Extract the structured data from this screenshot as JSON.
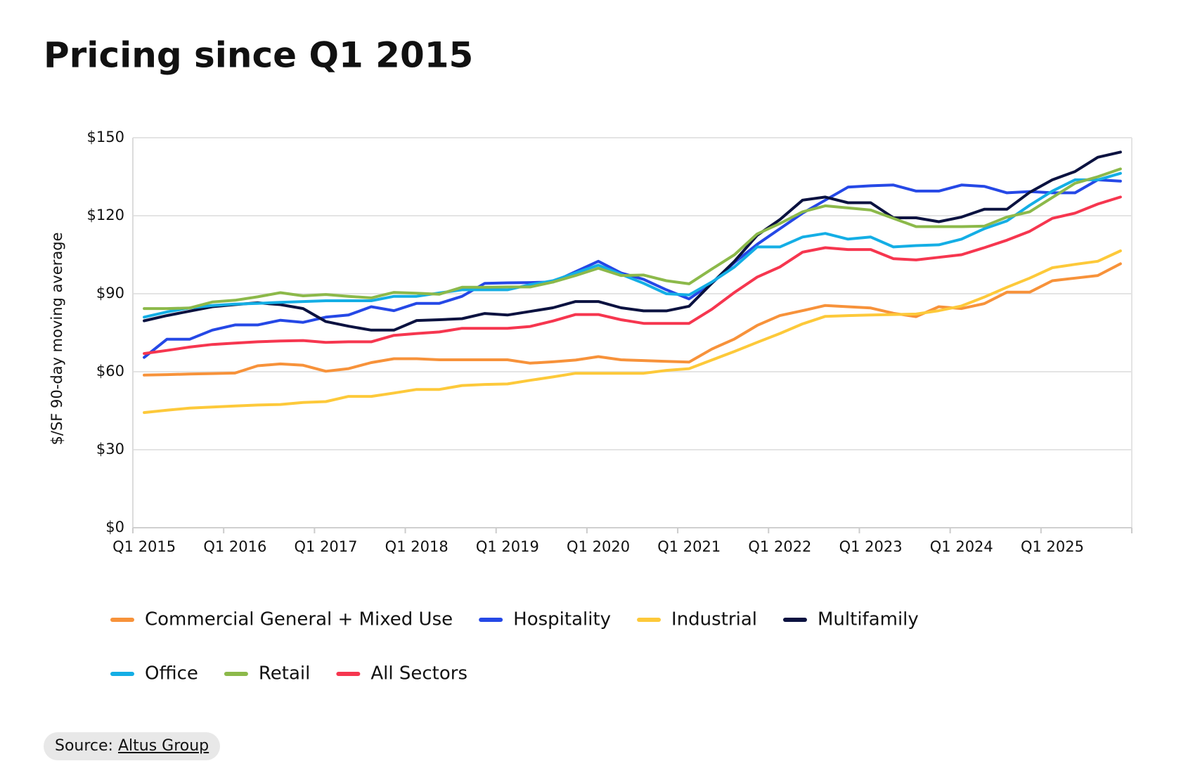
{
  "chart_data": {
    "type": "line",
    "title": "Pricing since Q1 2015",
    "y_label": "$/SF 90-day moving average",
    "categories": [
      "Q1 2015",
      null,
      null,
      null,
      "Q1 2016",
      null,
      null,
      null,
      "Q1 2017",
      null,
      null,
      null,
      "Q1 2018",
      null,
      null,
      null,
      "Q1 2019",
      null,
      null,
      null,
      "Q1 2020",
      null,
      null,
      null,
      "Q1 2021",
      null,
      null,
      null,
      "Q1 2022",
      null,
      null,
      null,
      "Q1 2023",
      null,
      null,
      null,
      "Q1 2024",
      null,
      null,
      null,
      "Q1 2025",
      null,
      null,
      null
    ],
    "ylim": [
      0,
      150
    ],
    "yticks": [
      {
        "value": 0,
        "label": "$0"
      },
      {
        "value": 30,
        "label": "$30"
      },
      {
        "value": 60,
        "label": "$60"
      },
      {
        "value": 90,
        "label": "$90"
      },
      {
        "value": 120,
        "label": "$120"
      },
      {
        "value": 150,
        "label": "$150"
      }
    ],
    "grid": true,
    "series": [
      {
        "name": "Commercial General + Mixed Use",
        "color": "#f7923a",
        "values": [
          58.7,
          58.9,
          59.1,
          59.3,
          59.5,
          62.3,
          63,
          62.5,
          60.2,
          61.2,
          63.5,
          65,
          65,
          64.6,
          64.6,
          64.6,
          64.6,
          63.3,
          63.8,
          64.5,
          65.8,
          64.6,
          64.3,
          64,
          63.7,
          68.7,
          72.6,
          77.8,
          81.6,
          83.5,
          85.5,
          85,
          84.5,
          82.5,
          81.2,
          85,
          84.3,
          86.2,
          90.6,
          90.6,
          95,
          96,
          97,
          101.5
        ]
      },
      {
        "name": "Hospitality",
        "color": "#2548e6",
        "values": [
          65.5,
          72.5,
          72.5,
          76,
          78,
          78,
          79.8,
          79,
          81,
          81.8,
          85,
          83.5,
          86.3,
          86.3,
          89,
          94,
          94.2,
          94.3,
          94.5,
          98.5,
          102.5,
          98,
          95.5,
          91.5,
          88,
          94,
          102,
          109,
          115,
          121,
          126,
          131,
          131.5,
          131.8,
          129.5,
          129.5,
          131.8,
          131.3,
          128.8,
          129.3,
          128.8,
          128.8,
          133.8,
          133.3
        ]
      },
      {
        "name": "Industrial",
        "color": "#fdc93a",
        "values": [
          44.3,
          45.2,
          46,
          46.4,
          46.8,
          47.2,
          47.4,
          48.2,
          48.5,
          50.5,
          50.5,
          51.8,
          53.2,
          53.2,
          54.7,
          55.1,
          55.3,
          56.7,
          58,
          59.4,
          59.4,
          59.4,
          59.4,
          60.5,
          61.2,
          64.5,
          67.8,
          71.3,
          74.7,
          78.4,
          81.3,
          81.6,
          81.8,
          82,
          82.2,
          83.5,
          85.3,
          88.7,
          92.5,
          96,
          100,
          101.3,
          102.5,
          106.5
        ]
      },
      {
        "name": "Multifamily",
        "color": "#0b1240",
        "values": [
          79.6,
          81.6,
          83.3,
          85,
          85.8,
          86.5,
          85.8,
          84.3,
          79.3,
          77.5,
          76,
          76,
          79.7,
          80,
          80.4,
          82.4,
          81.8,
          83.2,
          84.6,
          87,
          87,
          84.6,
          83.4,
          83.4,
          85.2,
          94,
          102.5,
          112.5,
          118.5,
          126,
          127.2,
          125,
          125,
          119.2,
          119.2,
          117.7,
          119.5,
          122.5,
          122.5,
          129,
          133.8,
          137,
          142.5,
          144.5
        ]
      },
      {
        "name": "Office",
        "color": "#14aee5",
        "values": [
          81,
          83,
          84.5,
          85.5,
          86,
          86.3,
          86.7,
          87,
          87.3,
          87.3,
          87.3,
          89,
          89,
          90.3,
          91.5,
          91.5,
          91.5,
          93.5,
          95,
          98,
          101,
          97.5,
          94,
          90,
          89.5,
          94.5,
          100.3,
          108,
          108,
          111.8,
          113.2,
          111,
          111.8,
          108,
          108.5,
          108.8,
          111,
          115,
          118,
          124,
          129.5,
          133.8,
          133.8,
          136.3
        ]
      },
      {
        "name": "Retail",
        "color": "#8cb94a",
        "values": [
          84.3,
          84.3,
          84.5,
          86.8,
          87.5,
          88.8,
          90.4,
          89.2,
          89.7,
          89,
          88.4,
          90.5,
          90.2,
          89.8,
          92.5,
          92.5,
          92.6,
          92.6,
          94.5,
          97,
          99.8,
          97,
          97.2,
          95,
          93.8,
          99.5,
          105,
          113,
          117,
          121.5,
          123.8,
          123,
          122.2,
          119,
          115.8,
          115.8,
          115.8,
          116,
          119.5,
          121.5,
          127,
          132.5,
          135,
          138
        ]
      },
      {
        "name": "All Sectors",
        "color": "#f6364f",
        "values": [
          67,
          68.2,
          69.5,
          70.5,
          71,
          71.5,
          71.8,
          72,
          71.3,
          71.5,
          71.5,
          74,
          74.7,
          75.3,
          76.7,
          76.7,
          76.7,
          77.4,
          79.5,
          82,
          82,
          80,
          78.6,
          78.6,
          78.6,
          84,
          90.5,
          96.4,
          100.3,
          106,
          107.7,
          107,
          107,
          103.5,
          103,
          104,
          105,
          107.7,
          110.6,
          114,
          119,
          121,
          124.5,
          127.2
        ]
      }
    ]
  },
  "source": {
    "label": "Source:",
    "name": "Altus Group"
  }
}
